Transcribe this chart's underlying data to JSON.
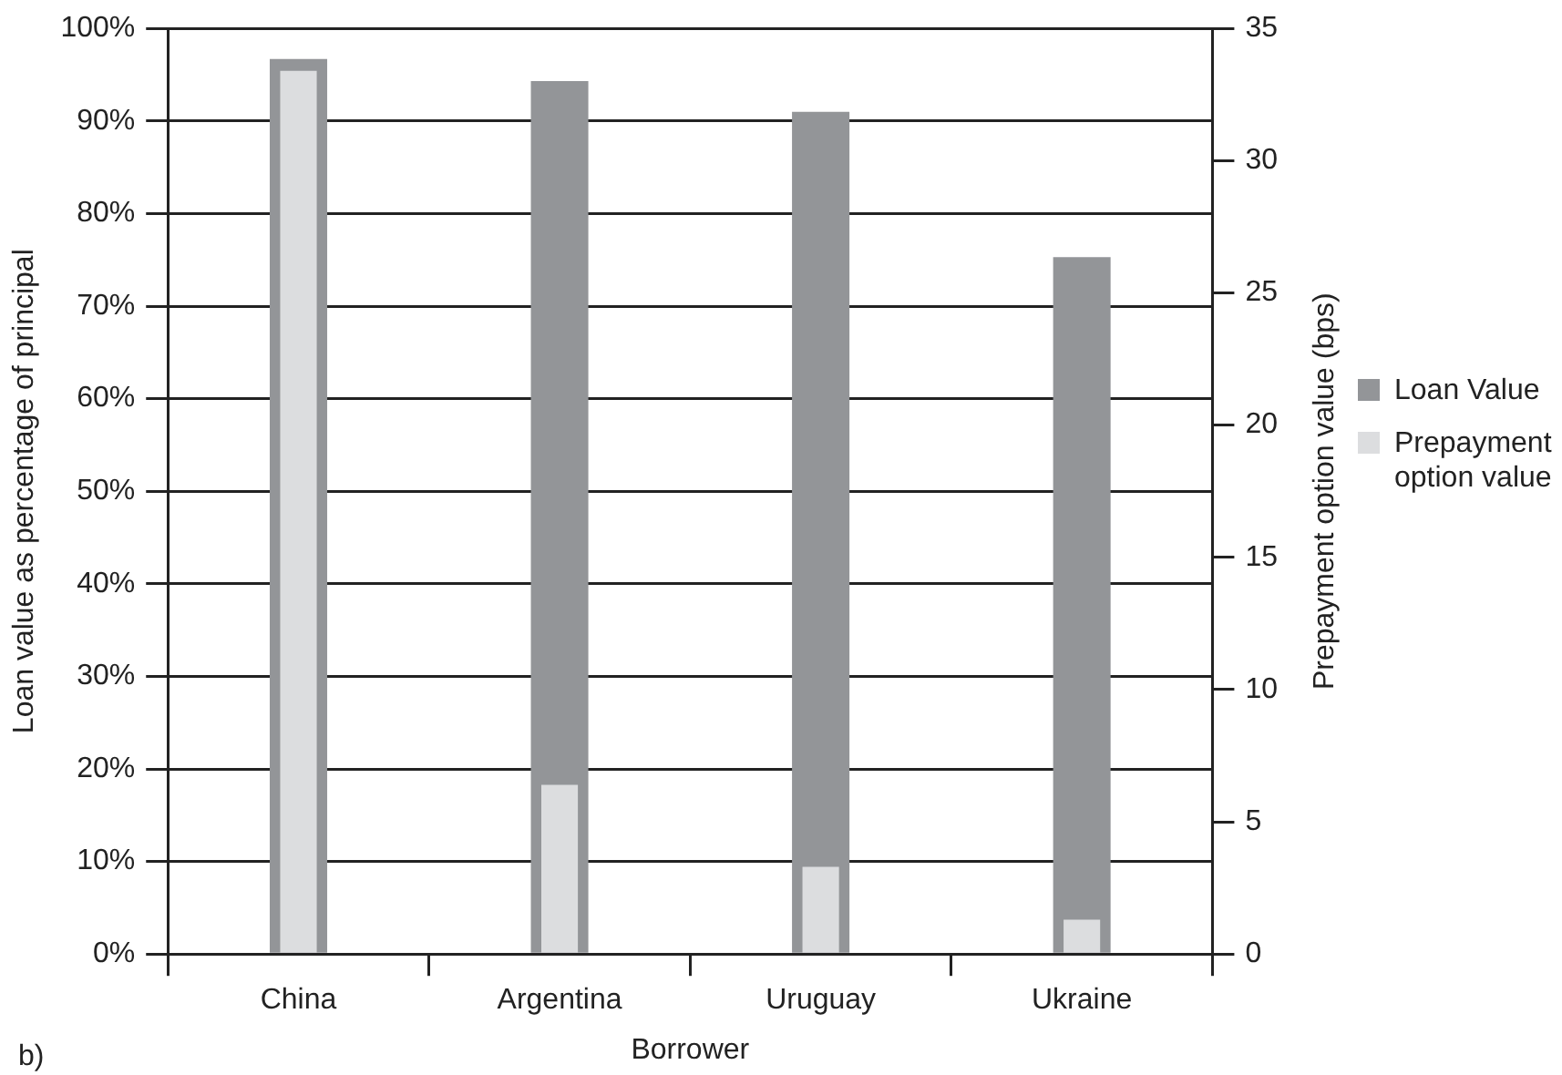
{
  "chart_data": {
    "type": "bar",
    "xlabel": "Borrower",
    "ylabel": "Loan value as percentage of principal",
    "y2label": "Prepayment option value (bps)",
    "categories": [
      "China",
      "Argentina",
      "Uruguay",
      "Ukraine"
    ],
    "series": [
      {
        "name": "Loan Value",
        "color": "#939598",
        "values": [
          96.7,
          94.3,
          91.0,
          75.3
        ]
      },
      {
        "name": "Prepayment option value",
        "color": "#dcdddf",
        "axis": "y2",
        "values": [
          33.4,
          6.4,
          3.3,
          1.3
        ]
      }
    ],
    "ylim": [
      0,
      100
    ],
    "yticks": [
      {
        "value": 0,
        "label": "0%"
      },
      {
        "value": 10,
        "label": "10%"
      },
      {
        "value": 20,
        "label": "20%"
      },
      {
        "value": 30,
        "label": "30%"
      },
      {
        "value": 40,
        "label": "40%"
      },
      {
        "value": 50,
        "label": "50%"
      },
      {
        "value": 60,
        "label": "60%"
      },
      {
        "value": 70,
        "label": "70%"
      },
      {
        "value": 80,
        "label": "80%"
      },
      {
        "value": 90,
        "label": "90%"
      },
      {
        "value": 100,
        "label": "100%"
      }
    ],
    "y2lim": [
      0,
      35
    ],
    "y2ticks": [
      0,
      5,
      10,
      15,
      20,
      25,
      30,
      35
    ],
    "grid": "y",
    "legend": "right",
    "annotations": [
      "b)"
    ]
  }
}
